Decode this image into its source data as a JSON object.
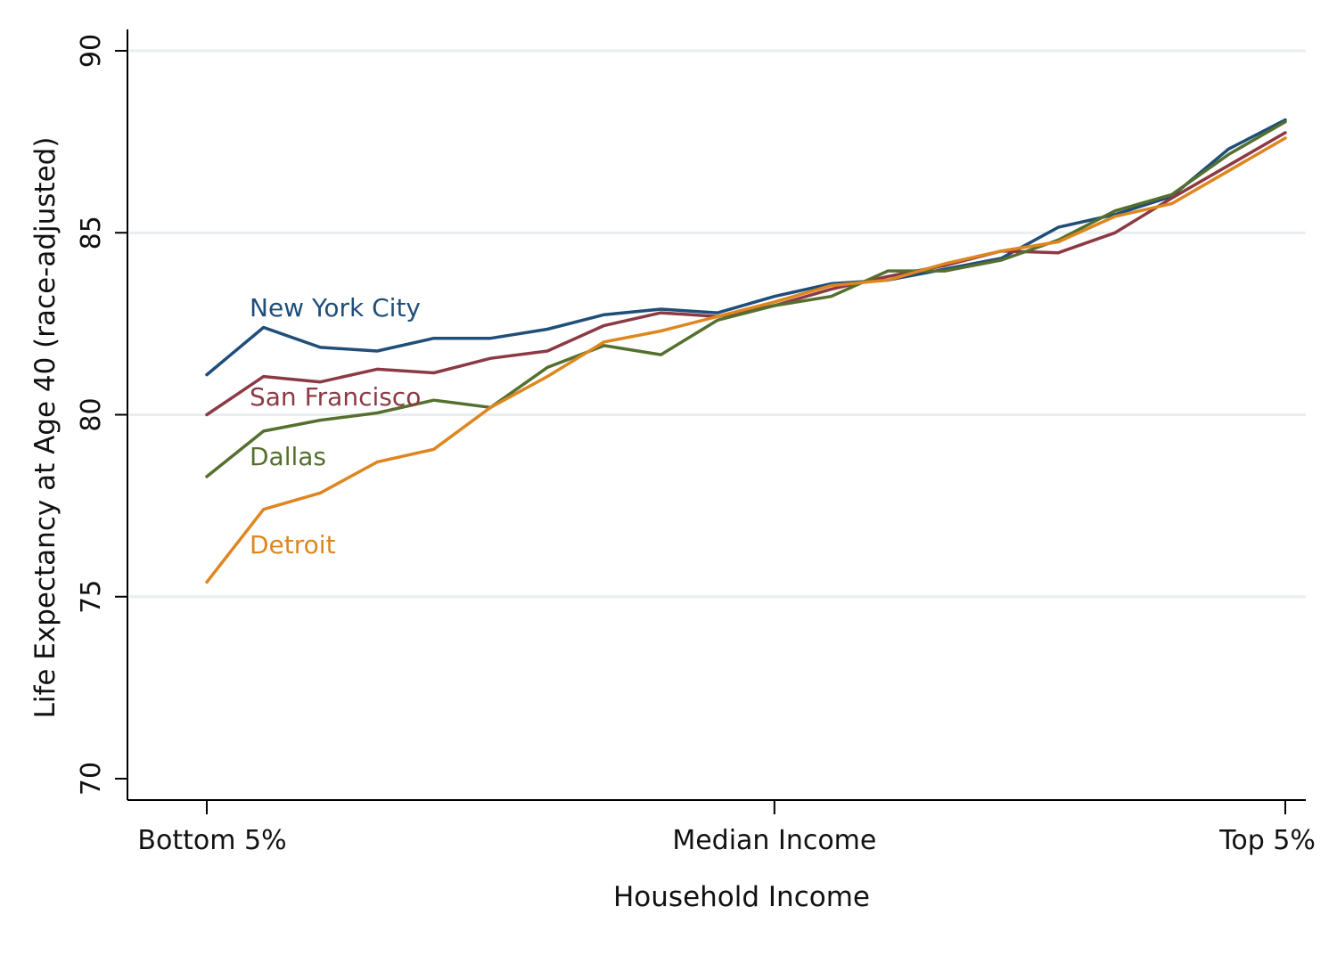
{
  "chart_data": {
    "type": "line",
    "title": "",
    "xlabel": "Household Income",
    "ylabel": "Life Expectancy at Age 40 (race-adjusted)",
    "ylim": [
      70,
      90
    ],
    "yticks": [
      70,
      75,
      80,
      85,
      90
    ],
    "xlim": [
      1,
      20
    ],
    "x": [
      1,
      2,
      3,
      4,
      5,
      6,
      7,
      8,
      9,
      10,
      11,
      12,
      13,
      14,
      15,
      16,
      17,
      18,
      19,
      20
    ],
    "xticks": [
      {
        "value": 1,
        "label": "Bottom 5%"
      },
      {
        "value": 11,
        "label": "Median Income"
      },
      {
        "value": 20,
        "label": "Top 5%"
      }
    ],
    "grid": "horizontal",
    "series": [
      {
        "name": "New York City",
        "label": "New York City",
        "color": "#1f4e79",
        "values": [
          81.1,
          82.4,
          81.85,
          81.75,
          82.1,
          82.1,
          82.35,
          82.75,
          82.9,
          82.8,
          83.25,
          83.6,
          83.7,
          84.0,
          84.3,
          85.15,
          85.5,
          86.0,
          87.3,
          88.1
        ]
      },
      {
        "name": "San Francisco",
        "label": "San Francisco",
        "color": "#8b3a44",
        "values": [
          80.0,
          81.05,
          80.9,
          81.25,
          81.15,
          81.55,
          81.75,
          82.45,
          82.8,
          82.7,
          83.0,
          83.45,
          83.8,
          84.1,
          84.5,
          84.45,
          85.0,
          85.95,
          86.85,
          87.75
        ]
      },
      {
        "name": "Dallas",
        "label": "Dallas",
        "color": "#55702e",
        "values": [
          78.3,
          79.55,
          79.85,
          80.05,
          80.4,
          80.2,
          81.3,
          81.9,
          81.65,
          82.6,
          83.0,
          83.25,
          83.95,
          83.95,
          84.25,
          84.8,
          85.6,
          86.05,
          87.15,
          88.05
        ]
      },
      {
        "name": "Detroit",
        "label": "Detroit",
        "color": "#de861f",
        "values": [
          75.4,
          77.4,
          77.85,
          78.7,
          79.05,
          80.2,
          81.05,
          82.0,
          82.3,
          82.7,
          83.1,
          83.55,
          83.7,
          84.15,
          84.5,
          84.75,
          85.45,
          85.8,
          86.7,
          87.6
        ]
      }
    ]
  }
}
